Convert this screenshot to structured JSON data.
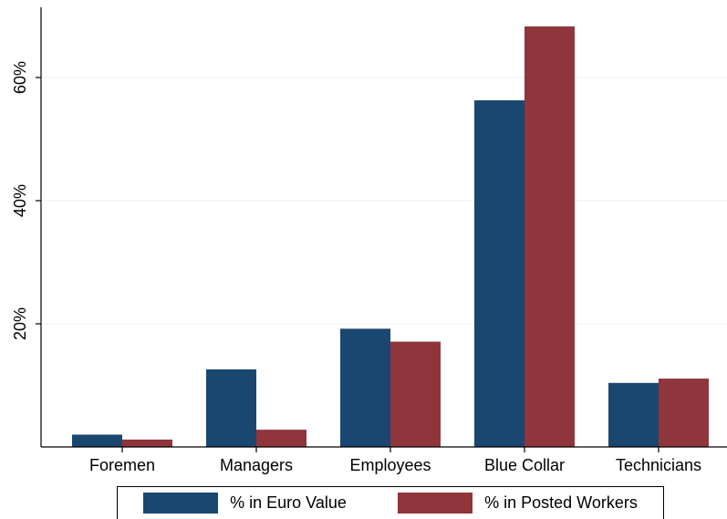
{
  "chart_data": {
    "type": "bar",
    "title": "",
    "xlabel": "",
    "ylabel": "",
    "categories": [
      "Foremen",
      "Managers",
      "Employees",
      "Blue Collar",
      "Technicians"
    ],
    "series": [
      {
        "name": "% in Euro Value",
        "values": [
          2.0,
          12.6,
          19.2,
          56.3,
          10.4
        ],
        "color": "#1a476f"
      },
      {
        "name": "% in Posted Workers",
        "values": [
          1.2,
          2.8,
          17.1,
          68.3,
          11.1
        ],
        "color": "#90353b"
      }
    ],
    "ylim": [
      0,
      70
    ],
    "yticks": [
      20,
      40,
      60
    ],
    "ytick_labels": [
      "20%",
      "40%",
      "60%"
    ],
    "grid": "horizontal",
    "legend_position": "bottom"
  }
}
